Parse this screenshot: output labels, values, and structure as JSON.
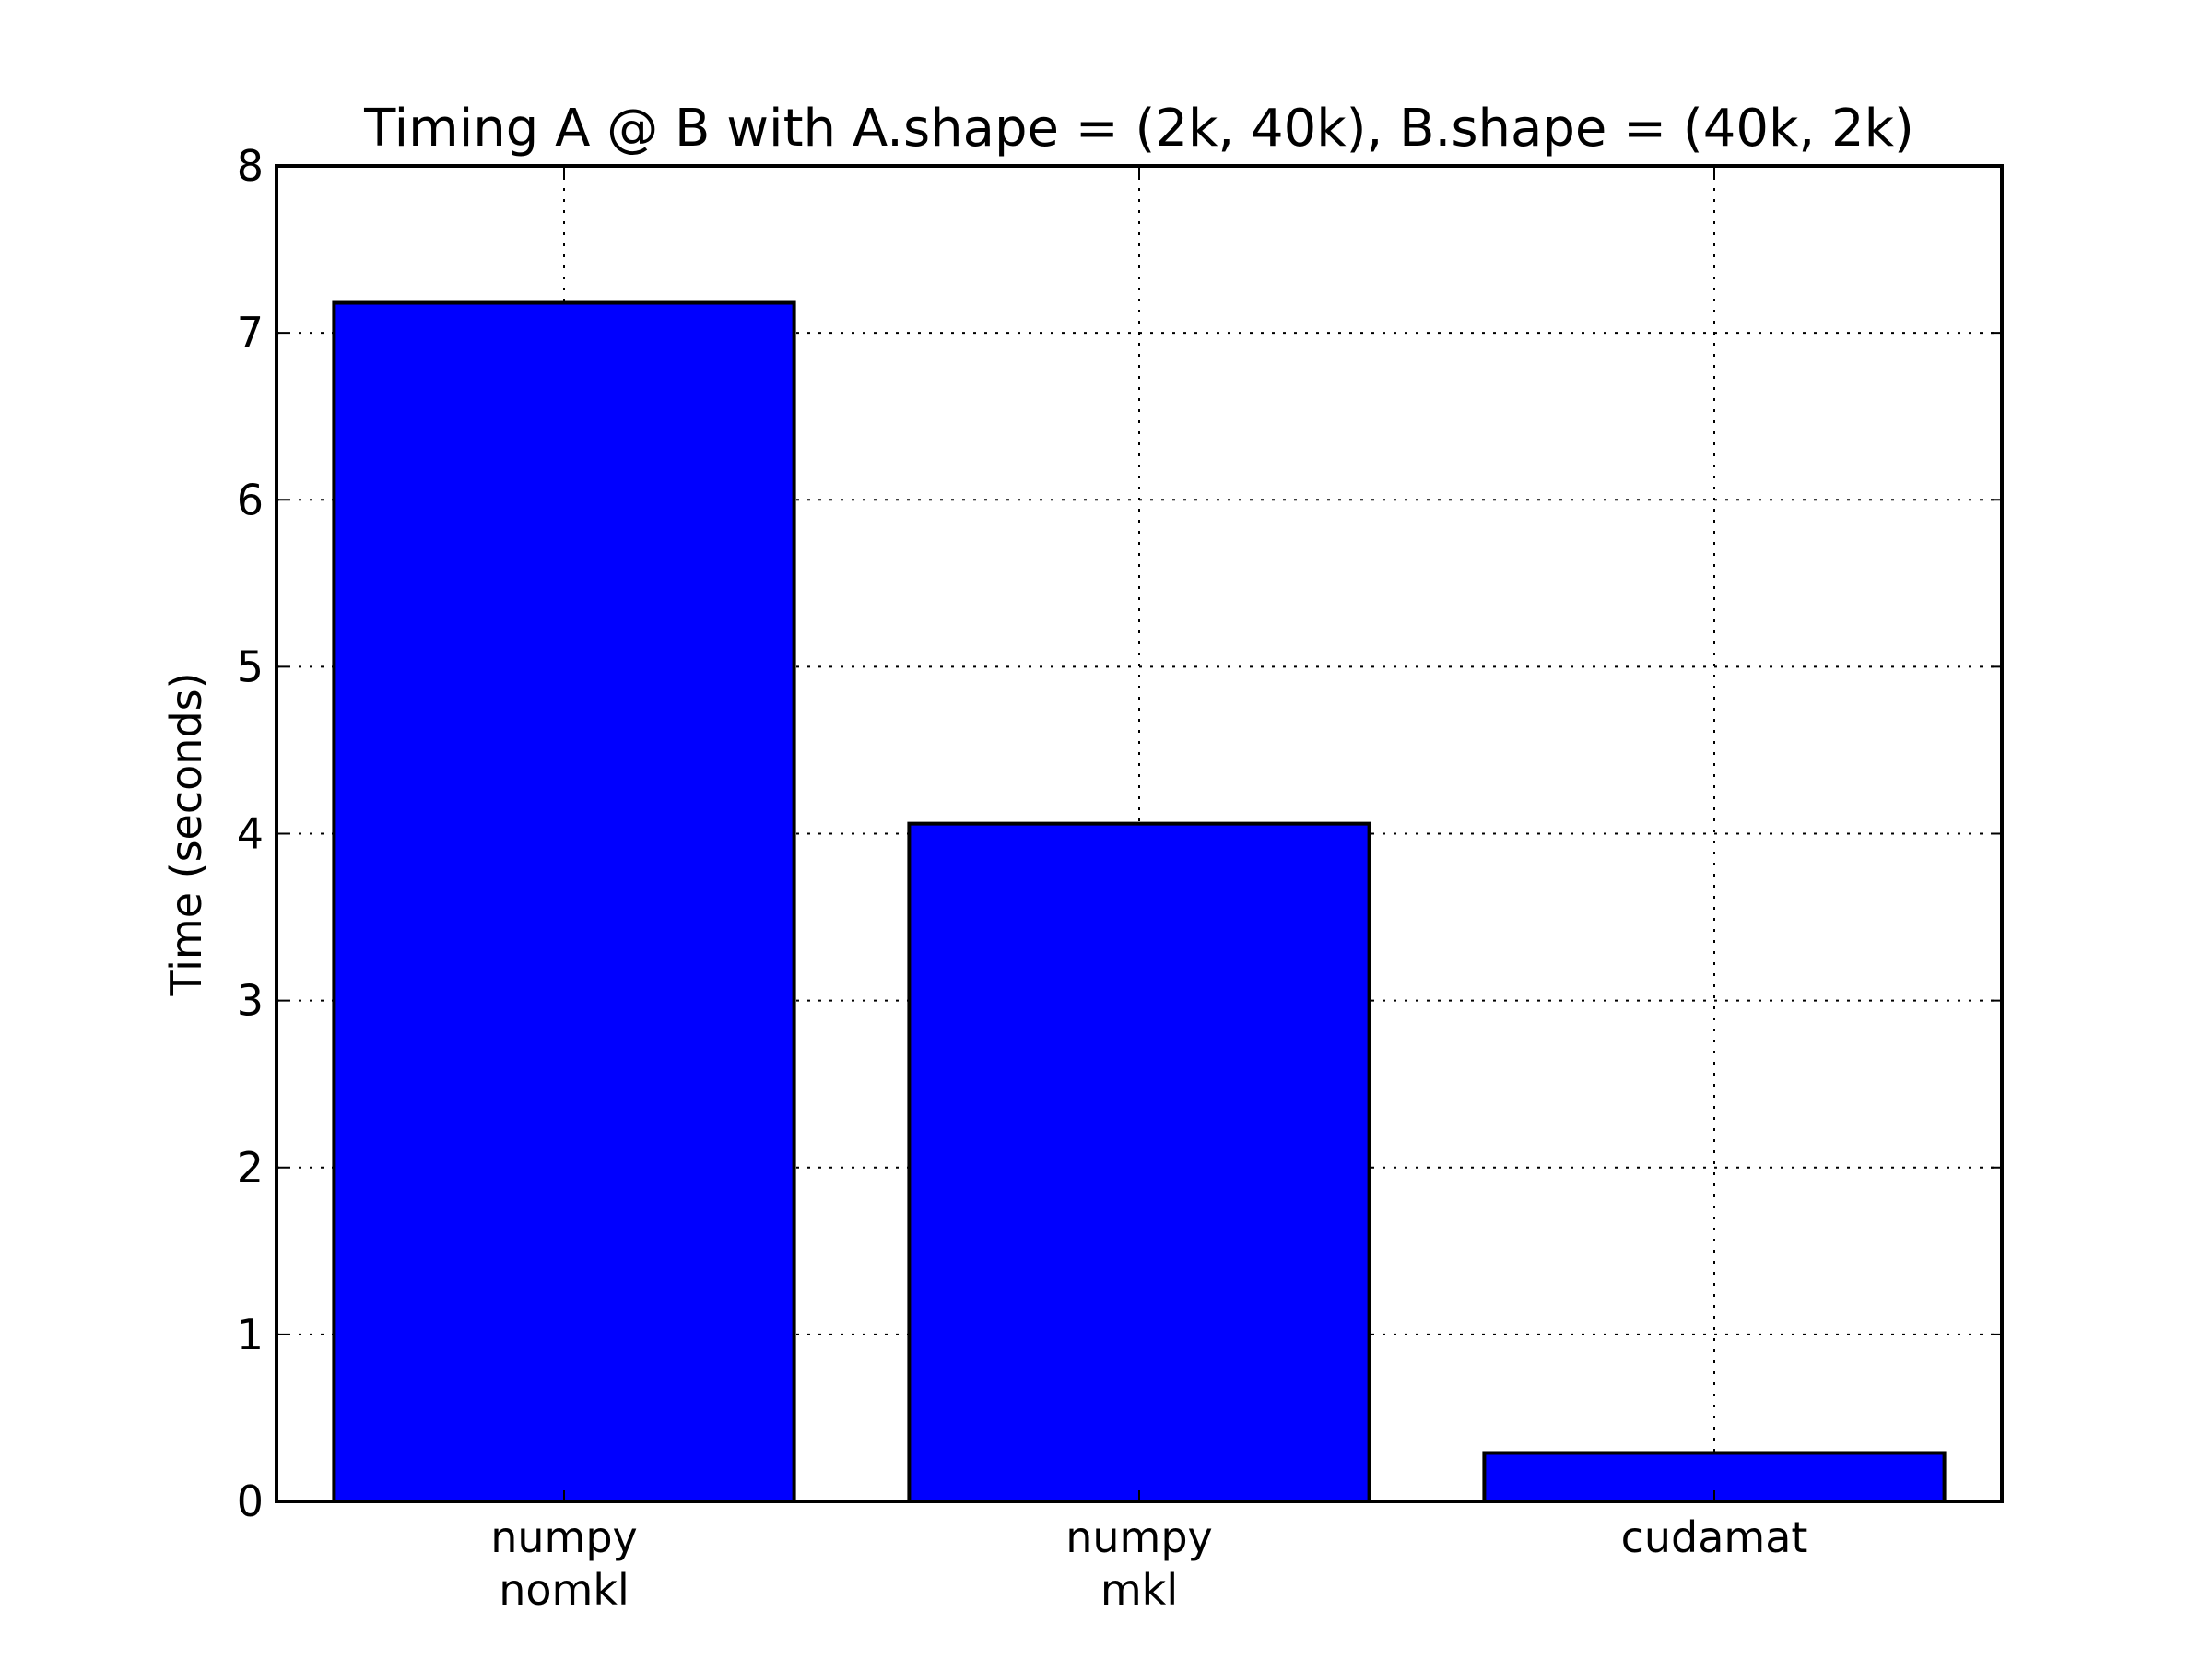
{
  "chart_data": {
    "type": "bar",
    "title": "Timing A @ B with A.shape = (2k, 40k), B.shape = (40k, 2k)",
    "xlabel": "",
    "ylabel": "Time (seconds)",
    "categories": [
      [
        "numpy",
        "nomkl"
      ],
      [
        "numpy",
        "mkl"
      ],
      [
        "cudamat"
      ]
    ],
    "values": [
      7.18,
      4.06,
      0.29
    ],
    "ylim": [
      0,
      8
    ],
    "yticks": [
      "0",
      "1",
      "2",
      "3",
      "4",
      "5",
      "6",
      "7",
      "8"
    ],
    "grid": true,
    "bar_color": "#0000ff"
  }
}
